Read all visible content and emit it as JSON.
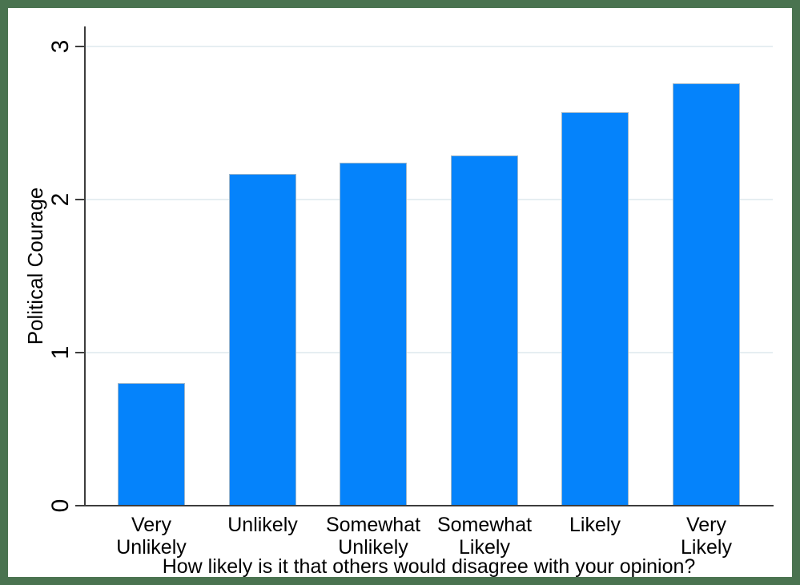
{
  "chart_data": {
    "type": "bar",
    "title": "",
    "xlabel": "How likely is it that others would disagree with your opinion?",
    "ylabel": "Political Courage",
    "categories": [
      [
        "Very",
        "Unlikely"
      ],
      [
        "Unlikely"
      ],
      [
        "Somewhat",
        "Unlikely"
      ],
      [
        "Somewhat",
        "Likely"
      ],
      [
        "Likely"
      ],
      [
        "Very",
        "Likely"
      ]
    ],
    "values": [
      0.8,
      2.17,
      2.24,
      2.29,
      2.57,
      2.76
    ],
    "ylim": [
      0,
      3
    ],
    "yticks": [
      0,
      1,
      2,
      3
    ],
    "grid": true,
    "legend": "none",
    "bar_color": "#0583fb",
    "gridline_color": "#e6eef2",
    "axis_color": "#3d3d3d",
    "frame_color": "#4a7350"
  }
}
